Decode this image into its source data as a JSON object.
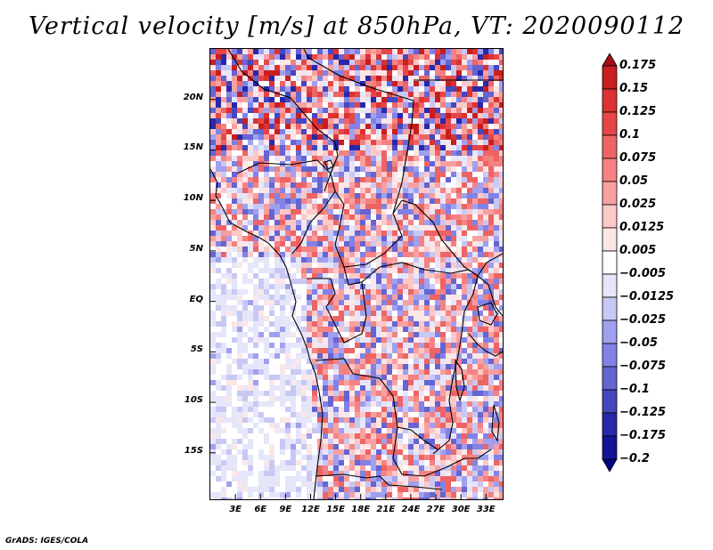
{
  "title": "Vertical velocity [m/s] at 850hPa, VT: 2020090112",
  "credit": "GrADS: IGES/COLA",
  "lat_labels": [
    "20N",
    "15N",
    "10N",
    "5N",
    "EQ",
    "5S",
    "10S",
    "15S"
  ],
  "lat_values": [
    20,
    15,
    10,
    5,
    0,
    -5,
    -10,
    -15
  ],
  "lon_labels": [
    "3E",
    "6E",
    "9E",
    "12E",
    "15E",
    "18E",
    "21E",
    "24E",
    "27E",
    "30E",
    "33E"
  ],
  "lon_values": [
    3,
    6,
    9,
    12,
    15,
    18,
    21,
    24,
    27,
    30,
    33
  ],
  "map_extent": {
    "lon_min": 0,
    "lon_max": 35,
    "lat_min": -19.6,
    "lat_max": 25
  },
  "colorbar": {
    "labels": [
      "0.175",
      "0.15",
      "0.125",
      "0.1",
      "0.075",
      "0.05",
      "0.025",
      "0.0125",
      "0.005",
      "−0.005",
      "−0.0125",
      "−0.025",
      "−0.05",
      "−0.075",
      "−0.1",
      "−0.125",
      "−0.175",
      "−0.2"
    ],
    "colors": [
      "#a50f15",
      "#c81e1e",
      "#dc3232",
      "#e64646",
      "#ee6464",
      "#f58282",
      "#f8a0a0",
      "#fcc8c8",
      "#fde6e6",
      "#ffffff",
      "#e6e6fa",
      "#c8c8f5",
      "#a0a0f0",
      "#8282e6",
      "#6464d2",
      "#4646be",
      "#2828aa",
      "#141496",
      "#000082"
    ]
  }
}
